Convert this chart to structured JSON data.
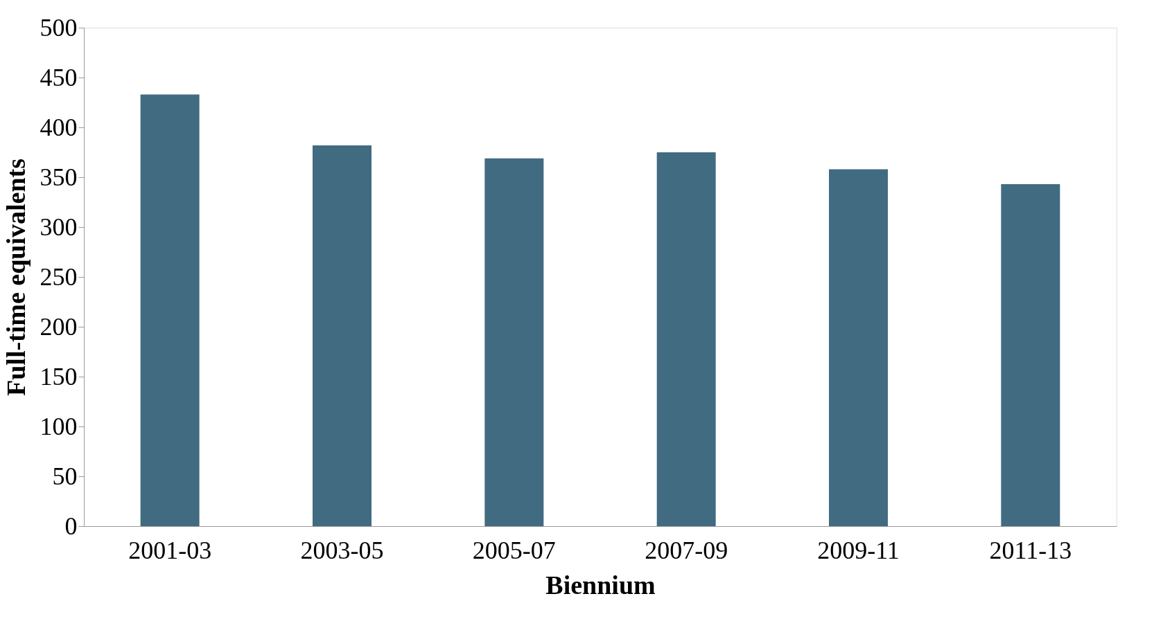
{
  "chart_data": {
    "type": "bar",
    "xlabel": "Biennium",
    "ylabel": "Full-time equivalents",
    "categories": [
      "2001-03",
      "2003-05",
      "2005-07",
      "2007-09",
      "2009-11",
      "2011-13"
    ],
    "values": [
      433,
      382,
      369,
      375,
      358,
      343
    ],
    "color": "#416b80",
    "ylim": [
      0,
      500
    ],
    "yticks": [
      0,
      50,
      100,
      150,
      200,
      250,
      300,
      350,
      400,
      450,
      500
    ],
    "grid": false
  }
}
